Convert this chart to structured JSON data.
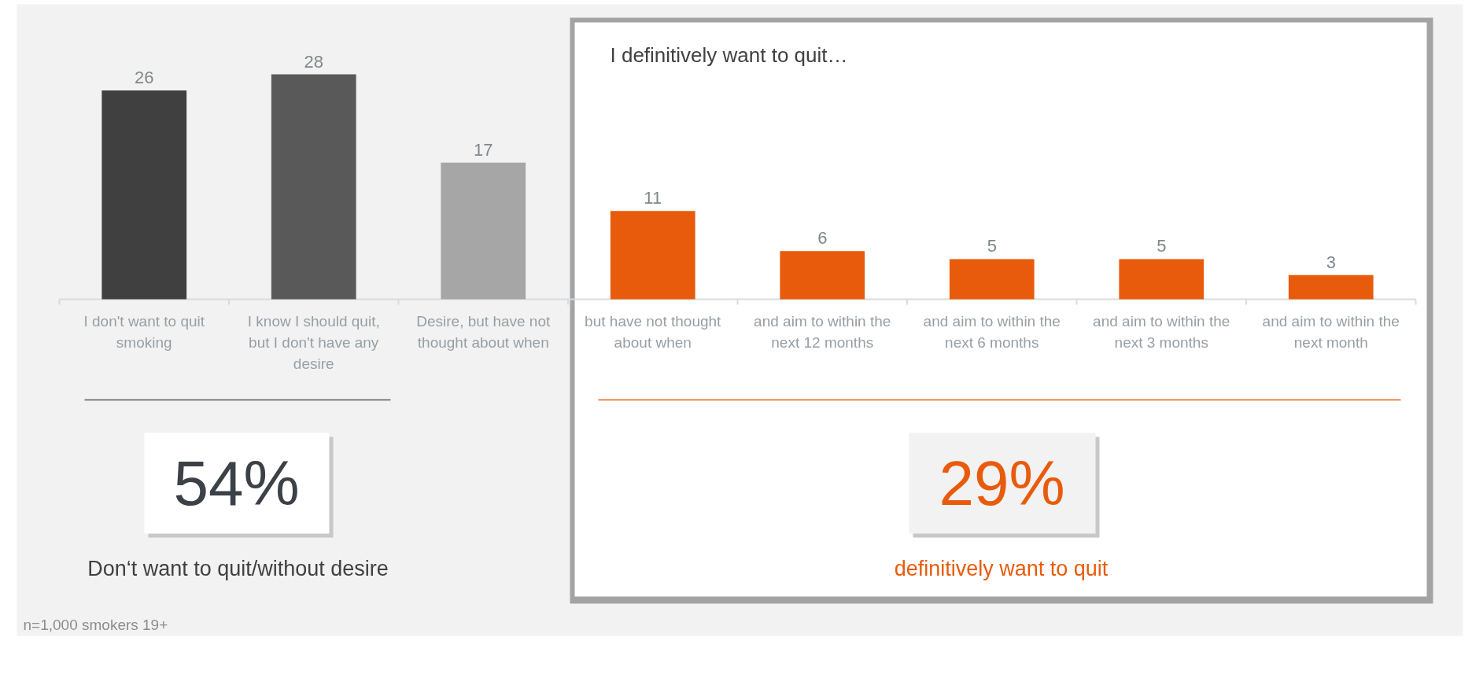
{
  "chart_data": {
    "type": "bar",
    "categories": [
      "I don't want to quit smoking",
      "I know I should quit, but I don't have any desire",
      "Desire, but have not thought about when",
      "but have not thought about when",
      "and aim to within the next 12 months",
      "and aim to within the next 6 months",
      "and aim to within the next 3 months",
      "and aim to within the next month"
    ],
    "values": [
      26,
      28,
      17,
      11,
      6,
      5,
      5,
      3
    ],
    "colors": [
      "#404040",
      "#595959",
      "#a6a6a6",
      "#e95b0c",
      "#e95b0c",
      "#e95b0c",
      "#e95b0c",
      "#e95b0c"
    ],
    "data_labels": true,
    "annotations": [
      "I definitively want to quit…",
      "54%",
      "Don‘t want to quit/without desire",
      "29%",
      "definitively want to quit",
      "n=1,000 smokers 19+"
    ]
  }
}
